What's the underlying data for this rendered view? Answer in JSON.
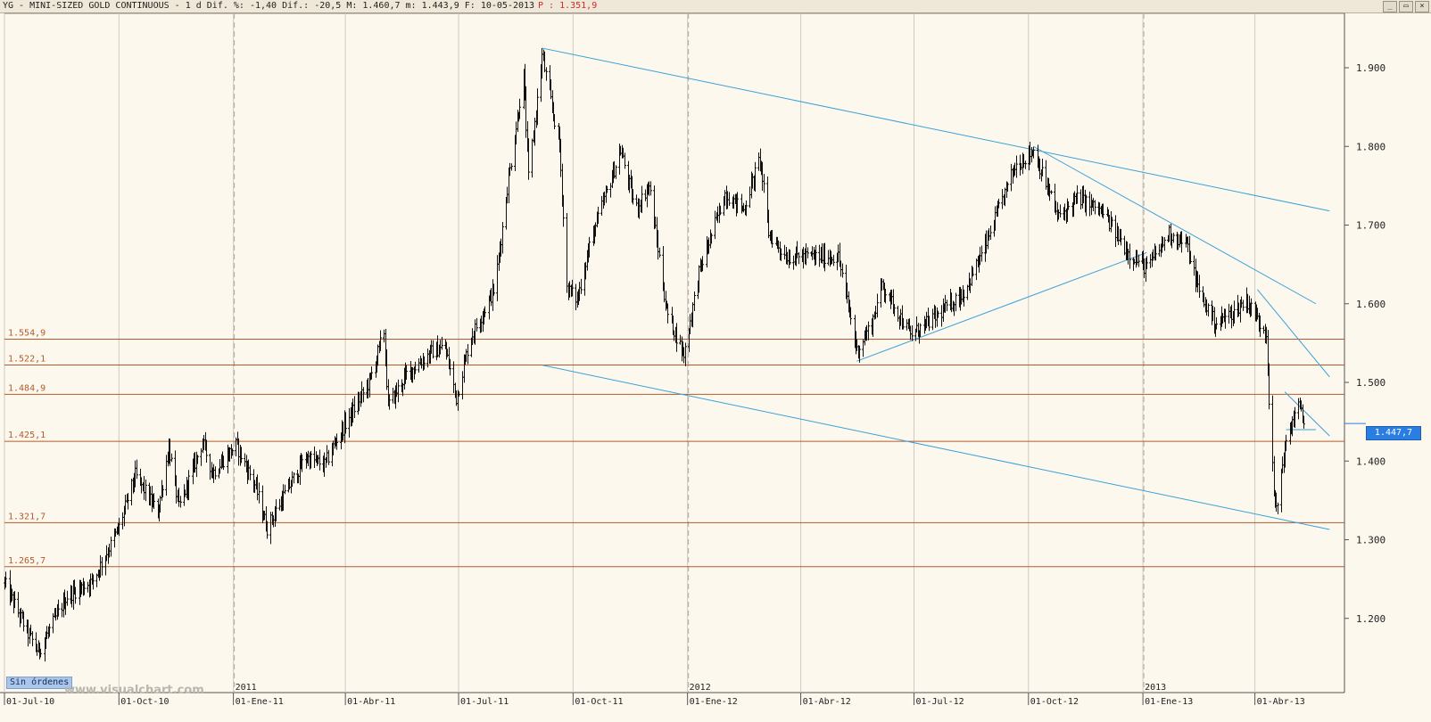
{
  "header": {
    "title": "YG - MINI-SIZED GOLD CONTINUOUS -  1 d Dif. %: -1,40 Dif.: -20,5 M: 1.460,7 m: 1.443,9 F: 10-05-2013",
    "p_label": "P : 1.351,9"
  },
  "window_buttons": [
    "_",
    "▭",
    "×"
  ],
  "orders_button": "Sin órdenes",
  "watermark": "www.visualchart.com",
  "last_price": "1.447,7",
  "colors": {
    "background": "#fdf8ee",
    "bars": "#111111",
    "trendlines": "#3aa0d8",
    "levels": "#b45a2a",
    "last_price_box": "#2a7de1"
  },
  "chart_data": {
    "type": "bar",
    "title": "YG - MINI-SIZED GOLD CONTINUOUS",
    "ylim": [
      1150,
      1970
    ],
    "y_ticks": [
      "1.900",
      "1.800",
      "1.700",
      "1.600",
      "1.500",
      "1.400",
      "1.300",
      "1.200"
    ],
    "y_tick_values": [
      1900,
      1800,
      1700,
      1600,
      1500,
      1400,
      1300,
      1200
    ],
    "x_start": "2010-07-01",
    "x_end": "2013-05-10",
    "x_ticks": [
      {
        "label": "01-Jul-10",
        "date": "2010-07-01"
      },
      {
        "label": "01-Oct-10",
        "date": "2010-10-01"
      },
      {
        "label": "01-Ene-11",
        "date": "2011-01-01"
      },
      {
        "label": "01-Abr-11",
        "date": "2011-04-01"
      },
      {
        "label": "01-Jul-11",
        "date": "2011-07-01"
      },
      {
        "label": "01-Oct-11",
        "date": "2011-10-01"
      },
      {
        "label": "01-Ene-12",
        "date": "2012-01-01"
      },
      {
        "label": "01-Abr-12",
        "date": "2012-04-01"
      },
      {
        "label": "01-Jul-12",
        "date": "2012-07-01"
      },
      {
        "label": "01-Oct-12",
        "date": "2012-10-01"
      },
      {
        "label": "01-Ene-13",
        "date": "2013-01-01"
      },
      {
        "label": "01-Abr-13",
        "date": "2013-04-01"
      }
    ],
    "year_labels": [
      {
        "label": "2011",
        "date": "2011-01-01"
      },
      {
        "label": "2012",
        "date": "2012-01-01"
      },
      {
        "label": "2013",
        "date": "2013-01-01"
      }
    ],
    "levels": [
      {
        "label": "1.554,9",
        "value": 1554.9
      },
      {
        "label": "1.522,1",
        "value": 1522.1
      },
      {
        "label": "1.484,9",
        "value": 1484.9
      },
      {
        "label": "1.425,1",
        "value": 1425.1
      },
      {
        "label": "1.321,7",
        "value": 1321.7
      },
      {
        "label": "1.265,7",
        "value": 1265.7
      }
    ],
    "trendlines": [
      {
        "from": [
          "2011-09-06",
          1925
        ],
        "to": [
          "2013-05-31",
          1718
        ]
      },
      {
        "from": [
          "2011-09-06",
          1522
        ],
        "to": [
          "2013-05-31",
          1313
        ]
      },
      {
        "from": [
          "2012-10-05",
          1800
        ],
        "to": [
          "2013-05-20",
          1600
        ]
      },
      {
        "from": [
          "2012-05-16",
          1527
        ],
        "to": [
          "2013-01-04",
          1665
        ]
      },
      {
        "from": [
          "2013-04-03",
          1618
        ],
        "to": [
          "2013-05-31",
          1507
        ]
      },
      {
        "from": [
          "2013-04-25",
          1488
        ],
        "to": [
          "2013-05-31",
          1432
        ]
      },
      {
        "from": [
          "2013-04-26",
          1440
        ],
        "to": [
          "2013-05-20",
          1440
        ]
      }
    ],
    "price_path": [
      [
        "2010-07-01",
        1245
      ],
      [
        "2010-07-20",
        1180
      ],
      [
        "2010-07-28",
        1158
      ],
      [
        "2010-08-20",
        1228
      ],
      [
        "2010-09-10",
        1248
      ],
      [
        "2010-10-01",
        1316
      ],
      [
        "2010-10-14",
        1382
      ],
      [
        "2010-11-01",
        1335
      ],
      [
        "2010-11-10",
        1418
      ],
      [
        "2010-11-18",
        1340
      ],
      [
        "2010-12-07",
        1424
      ],
      [
        "2010-12-15",
        1385
      ],
      [
        "2011-01-03",
        1420
      ],
      [
        "2011-01-18",
        1370
      ],
      [
        "2011-01-28",
        1315
      ],
      [
        "2011-02-10",
        1355
      ],
      [
        "2011-02-28",
        1405
      ],
      [
        "2011-03-15",
        1395
      ],
      [
        "2011-03-25",
        1428
      ],
      [
        "2011-04-20",
        1500
      ],
      [
        "2011-05-02",
        1565
      ],
      [
        "2011-05-05",
        1470
      ],
      [
        "2011-05-20",
        1510
      ],
      [
        "2011-06-10",
        1540
      ],
      [
        "2011-06-20",
        1545
      ],
      [
        "2011-06-29",
        1480
      ],
      [
        "2011-07-10",
        1555
      ],
      [
        "2011-07-30",
        1620
      ],
      [
        "2011-08-10",
        1760
      ],
      [
        "2011-08-22",
        1890
      ],
      [
        "2011-08-26",
        1760
      ],
      [
        "2011-09-06",
        1915
      ],
      [
        "2011-09-20",
        1800
      ],
      [
        "2011-09-26",
        1620
      ],
      [
        "2011-10-04",
        1605
      ],
      [
        "2011-10-15",
        1680
      ],
      [
        "2011-11-08",
        1795
      ],
      [
        "2011-11-20",
        1720
      ],
      [
        "2011-12-01",
        1750
      ],
      [
        "2011-12-15",
        1590
      ],
      [
        "2011-12-29",
        1535
      ],
      [
        "2012-01-10",
        1640
      ],
      [
        "2012-01-31",
        1740
      ],
      [
        "2012-02-15",
        1720
      ],
      [
        "2012-02-28",
        1785
      ],
      [
        "2012-03-06",
        1690
      ],
      [
        "2012-03-20",
        1660
      ],
      [
        "2012-04-10",
        1660
      ],
      [
        "2012-05-01",
        1660
      ],
      [
        "2012-05-16",
        1540
      ],
      [
        "2012-05-28",
        1575
      ],
      [
        "2012-06-05",
        1625
      ],
      [
        "2012-06-28",
        1560
      ],
      [
        "2012-07-20",
        1585
      ],
      [
        "2012-08-10",
        1615
      ],
      [
        "2012-08-25",
        1665
      ],
      [
        "2012-09-20",
        1775
      ],
      [
        "2012-10-05",
        1795
      ],
      [
        "2012-10-25",
        1710
      ],
      [
        "2012-11-10",
        1735
      ],
      [
        "2012-11-30",
        1715
      ],
      [
        "2012-12-20",
        1665
      ],
      [
        "2013-01-04",
        1645
      ],
      [
        "2013-01-22",
        1690
      ],
      [
        "2013-02-05",
        1675
      ],
      [
        "2013-02-15",
        1615
      ],
      [
        "2013-02-28",
        1575
      ],
      [
        "2013-03-15",
        1590
      ],
      [
        "2013-03-25",
        1605
      ],
      [
        "2013-04-05",
        1575
      ],
      [
        "2013-04-10",
        1565
      ],
      [
        "2013-04-12",
        1480
      ],
      [
        "2013-04-16",
        1360
      ],
      [
        "2013-04-18",
        1335
      ],
      [
        "2013-04-24",
        1410
      ],
      [
        "2013-05-01",
        1450
      ],
      [
        "2013-05-05",
        1475
      ],
      [
        "2013-05-10",
        1450
      ]
    ]
  }
}
